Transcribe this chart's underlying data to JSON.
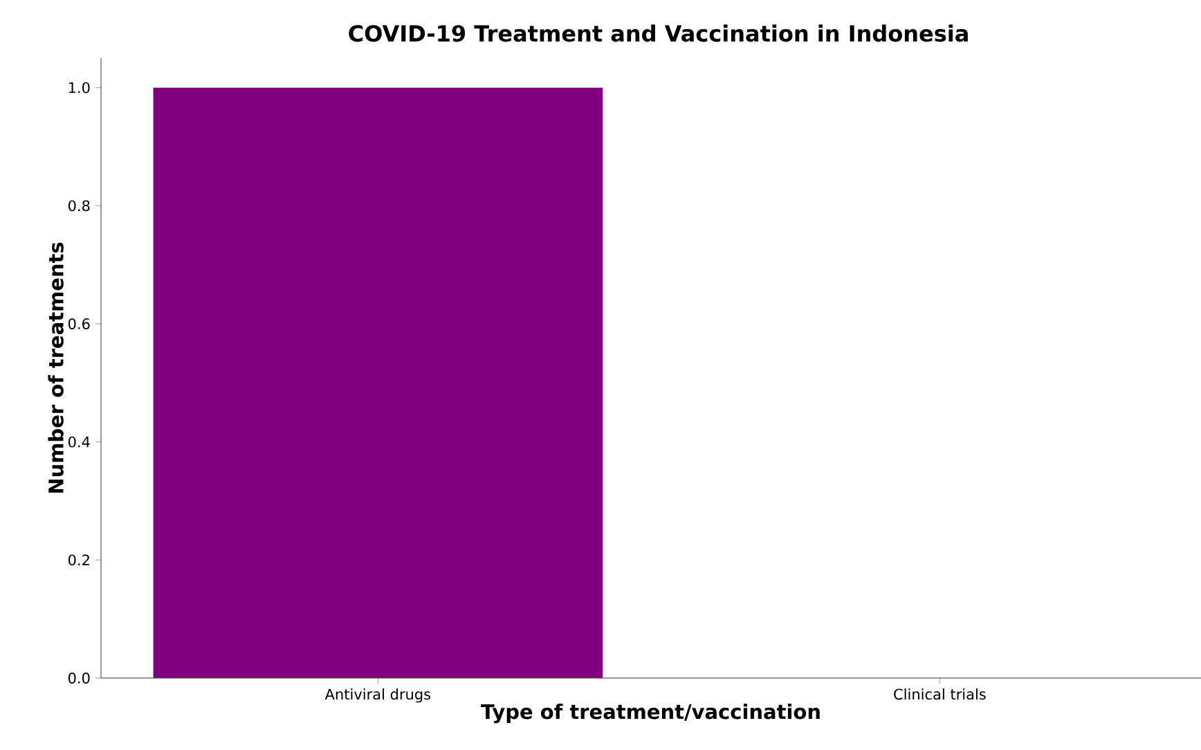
{
  "chart_data": {
    "type": "bar",
    "title": "COVID-19 Treatment and Vaccination in Indonesia",
    "xlabel": "Type of treatment/vaccination",
    "ylabel": "Number of treatments",
    "categories": [
      "Antiviral drugs",
      "Clinical trials"
    ],
    "values": [
      1,
      0
    ],
    "color": "#800080",
    "ylim": [
      0,
      1.05
    ],
    "yticks": [
      {
        "value": 0,
        "label": "0.0"
      },
      {
        "value": 0.2,
        "label": "0.2"
      },
      {
        "value": 0.4,
        "label": "0.4"
      },
      {
        "value": 0.6,
        "label": "0.6"
      },
      {
        "value": 0.8,
        "label": "0.8"
      },
      {
        "value": 1,
        "label": "1.0"
      }
    ],
    "grid": false
  }
}
